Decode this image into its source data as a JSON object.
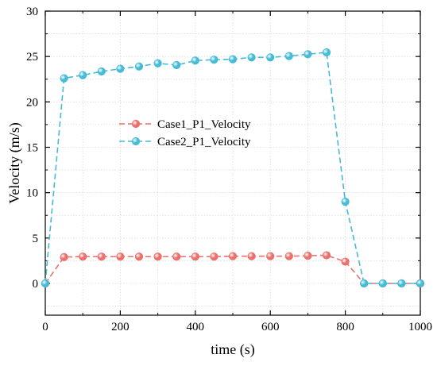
{
  "chart_data": {
    "type": "line",
    "title": "",
    "xlabel": "time (s)",
    "ylabel": "Velocity (m/s)",
    "xlim": [
      0,
      1000
    ],
    "ylim": [
      -3.5,
      30
    ],
    "xticks": [
      0,
      200,
      400,
      600,
      800,
      1000
    ],
    "yticks": [
      0,
      5,
      10,
      15,
      20,
      25,
      30
    ],
    "grid": true,
    "legend_position": "center-left",
    "series": [
      {
        "name": "Case1_P1_Velocity",
        "color": "#e9706b",
        "x": [
          0,
          50,
          100,
          150,
          200,
          250,
          300,
          350,
          400,
          450,
          500,
          550,
          600,
          650,
          700,
          750,
          800,
          850,
          900,
          950,
          1000
        ],
        "y": [
          0,
          2.9,
          2.95,
          2.95,
          2.95,
          2.95,
          2.95,
          2.95,
          2.95,
          2.95,
          3.0,
          3.0,
          3.0,
          3.0,
          3.05,
          3.1,
          2.4,
          0,
          0,
          0,
          0
        ]
      },
      {
        "name": "Case2_P1_Velocity",
        "color": "#45bbd6",
        "x": [
          0,
          50,
          100,
          150,
          200,
          250,
          300,
          350,
          400,
          450,
          500,
          550,
          600,
          650,
          700,
          750,
          800,
          850,
          900,
          950,
          1000
        ],
        "y": [
          0,
          22.6,
          22.95,
          23.35,
          23.65,
          23.9,
          24.25,
          24.05,
          24.55,
          24.65,
          24.7,
          24.9,
          24.9,
          25.05,
          25.25,
          25.45,
          9.0,
          0,
          0,
          0,
          0
        ]
      }
    ]
  }
}
